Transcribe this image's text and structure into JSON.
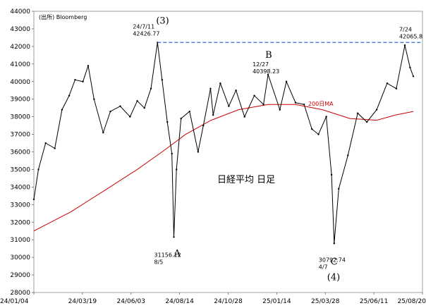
{
  "chart_data": {
    "type": "line",
    "title": "日経平均 日足",
    "source": "(出所) Bloomberg",
    "ylim": [
      28000,
      44000
    ],
    "y_ticks": [
      28000,
      29000,
      30000,
      31000,
      32000,
      33000,
      34000,
      35000,
      36000,
      37000,
      38000,
      39000,
      40000,
      41000,
      42000,
      43000,
      44000
    ],
    "x_ticks": [
      "24/01/04",
      "24/03/19",
      "24/06/03",
      "24/08/14",
      "24/10/28",
      "25/01/14",
      "25/03/28",
      "25/06/11",
      "25/08/20"
    ],
    "x_start": "2024-01-04",
    "x_end": "2025-08-20",
    "series": [
      {
        "name": "",
        "color": "#000000",
        "points": [
          [
            "2024-01-04",
            33300
          ],
          [
            "2024-01-11",
            35000
          ],
          [
            "2024-01-22",
            36500
          ],
          [
            "2024-02-05",
            36200
          ],
          [
            "2024-02-16",
            38400
          ],
          [
            "2024-02-27",
            39200
          ],
          [
            "2024-03-07",
            40100
          ],
          [
            "2024-03-19",
            40000
          ],
          [
            "2024-03-27",
            40900
          ],
          [
            "2024-04-05",
            39000
          ],
          [
            "2024-04-19",
            37100
          ],
          [
            "2024-04-30",
            38300
          ],
          [
            "2024-05-15",
            38600
          ],
          [
            "2024-05-30",
            38000
          ],
          [
            "2024-06-10",
            38900
          ],
          [
            "2024-06-21",
            38500
          ],
          [
            "2024-07-01",
            39600
          ],
          [
            "2024-07-11",
            42225
          ],
          [
            "2024-07-18",
            40100
          ],
          [
            "2024-07-26",
            37700
          ],
          [
            "2024-08-02",
            35900
          ],
          [
            "2024-08-05",
            31156
          ],
          [
            "2024-08-09",
            35000
          ],
          [
            "2024-08-16",
            37900
          ],
          [
            "2024-08-29",
            38300
          ],
          [
            "2024-09-11",
            36000
          ],
          [
            "2024-09-19",
            37500
          ],
          [
            "2024-09-30",
            39600
          ],
          [
            "2024-10-04",
            38100
          ],
          [
            "2024-10-15",
            39900
          ],
          [
            "2024-10-28",
            38600
          ],
          [
            "2024-11-08",
            39500
          ],
          [
            "2024-11-21",
            38000
          ],
          [
            "2024-12-06",
            39200
          ],
          [
            "2024-12-20",
            38700
          ],
          [
            "2024-12-27",
            40398
          ],
          [
            "2025-01-14",
            38400
          ],
          [
            "2025-01-24",
            40000
          ],
          [
            "2025-02-07",
            38800
          ],
          [
            "2025-02-20",
            38700
          ],
          [
            "2025-03-04",
            37300
          ],
          [
            "2025-03-14",
            37000
          ],
          [
            "2025-03-26",
            38000
          ],
          [
            "2025-04-03",
            34700
          ],
          [
            "2025-04-07",
            30792
          ],
          [
            "2025-04-14",
            33900
          ],
          [
            "2025-04-28",
            35800
          ],
          [
            "2025-05-13",
            38200
          ],
          [
            "2025-05-27",
            37700
          ],
          [
            "2025-06-11",
            38400
          ],
          [
            "2025-06-27",
            39900
          ],
          [
            "2025-07-11",
            39600
          ],
          [
            "2025-07-24",
            42065
          ],
          [
            "2025-08-01",
            40800
          ],
          [
            "2025-08-06",
            40300
          ]
        ]
      },
      {
        "name": "200日MA",
        "color": "#cc0000",
        "points": [
          [
            "2024-01-04",
            31500
          ],
          [
            "2024-03-01",
            32600
          ],
          [
            "2024-04-25",
            33900
          ],
          [
            "2024-06-10",
            35000
          ],
          [
            "2024-07-18",
            36000
          ],
          [
            "2024-08-23",
            37000
          ],
          [
            "2024-10-01",
            37800
          ],
          [
            "2024-11-12",
            38400
          ],
          [
            "2024-12-27",
            38700
          ],
          [
            "2025-02-07",
            38700
          ],
          [
            "2025-03-20",
            38400
          ],
          [
            "2025-05-01",
            37900
          ],
          [
            "2025-06-11",
            37800
          ],
          [
            "2025-07-10",
            38100
          ],
          [
            "2025-08-06",
            38300
          ]
        ]
      }
    ],
    "reference_line": {
      "value": 42225,
      "from": "2024-07-11",
      "to": "2025-08-20",
      "color": "#3366cc",
      "style": "dashed"
    },
    "annotations": [
      {
        "lines": [
          "24/7/11",
          "42426.77"
        ],
        "date": "2024-07-11",
        "y": 42225
      },
      {
        "lines": [
          "12/27",
          "40398.23"
        ],
        "date": "2024-12-27",
        "y": 40398
      },
      {
        "lines": [
          "7/24",
          "42065.8"
        ],
        "date": "2025-07-24",
        "y": 42065
      },
      {
        "lines": [
          "31156.12",
          "8/5"
        ],
        "date": "2024-08-05",
        "y": 31156
      },
      {
        "lines": [
          "30792.74",
          "4/7"
        ],
        "date": "2025-04-07",
        "y": 30792
      }
    ],
    "labels": [
      {
        "text": "(3)",
        "date": "2024-07-11",
        "y": 42225
      },
      {
        "text": "B",
        "date": "2024-12-27",
        "y": 40398
      },
      {
        "text": "A",
        "date": "2024-08-05",
        "y": 31156
      },
      {
        "text": "C",
        "date": "2025-04-07",
        "y": 30792
      },
      {
        "text": "(4)",
        "date": "2025-04-07",
        "y": 30792
      }
    ],
    "grid": false
  }
}
